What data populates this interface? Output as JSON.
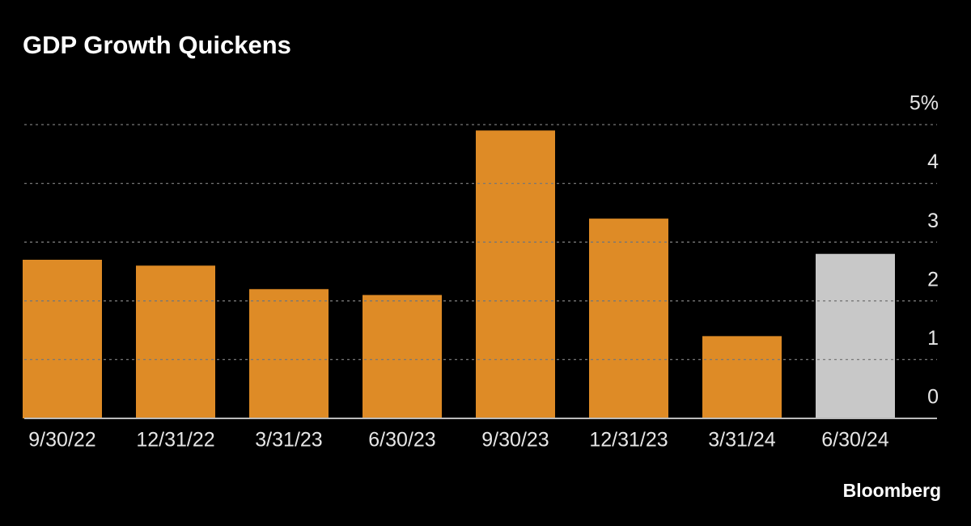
{
  "chart_data": {
    "type": "bar",
    "title": "GDP Growth Quickens",
    "categories": [
      "9/30/22",
      "12/31/22",
      "3/31/23",
      "6/30/23",
      "9/30/23",
      "12/31/23",
      "3/31/24",
      "6/30/24"
    ],
    "values": [
      2.7,
      2.6,
      2.2,
      2.1,
      4.9,
      3.4,
      1.4,
      2.8
    ],
    "colors": [
      "#de8b26",
      "#de8b26",
      "#de8b26",
      "#de8b26",
      "#de8b26",
      "#de8b26",
      "#de8b26",
      "#c8c8c8"
    ],
    "ylim": [
      0,
      5
    ],
    "yticks": [
      0,
      1,
      2,
      3,
      4,
      {
        "value": 5,
        "label": "5%"
      }
    ],
    "grid": true,
    "source": "Bloomberg"
  }
}
